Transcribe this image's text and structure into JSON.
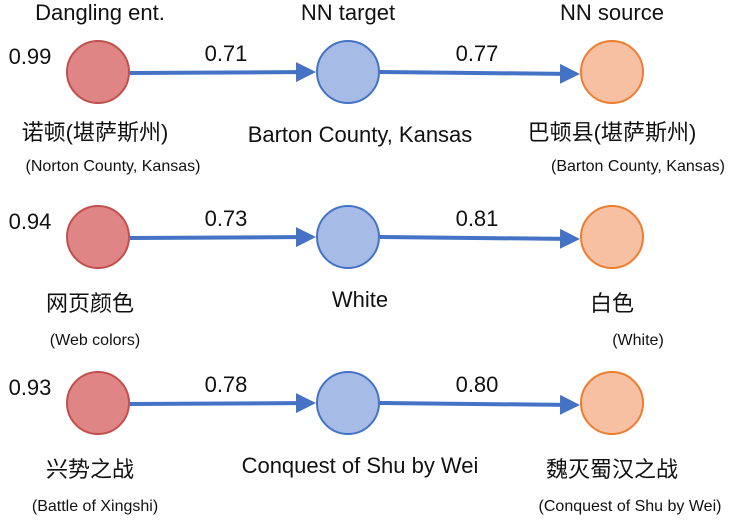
{
  "headers": [
    "Dangling ent.",
    "NN target",
    "NN source"
  ],
  "rows": [
    {
      "score": "0.99",
      "edge1": "0.71",
      "edge2": "0.77",
      "dangling": {
        "label": "诺顿(堪萨斯州)",
        "translation": "(Norton County, Kansas)"
      },
      "target": {
        "label": "Barton County, Kansas"
      },
      "source": {
        "label": "巴顿县(堪萨斯州)",
        "translation": "(Barton County, Kansas)"
      }
    },
    {
      "score": "0.94",
      "edge1": "0.73",
      "edge2": "0.81",
      "dangling": {
        "label": "网页颜色",
        "translation": "(Web colors)"
      },
      "target": {
        "label": "White"
      },
      "source": {
        "label": "白色",
        "translation": "(White)"
      }
    },
    {
      "score": "0.93",
      "edge1": "0.78",
      "edge2": "0.80",
      "dangling": {
        "label": "兴势之战",
        "translation": "(Battle of Xingshi)"
      },
      "target": {
        "label": "Conquest of Shu by Wei"
      },
      "source": {
        "label": "魏灭蜀汉之战",
        "translation": "(Conquest of Shu by Wei)"
      }
    }
  ]
}
